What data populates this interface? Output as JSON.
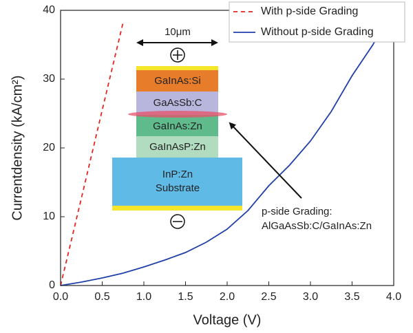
{
  "chart_data": {
    "type": "line",
    "xlabel": "Voltage (V)",
    "ylabel": "Currentdensity (kA/cm²)",
    "xlim": [
      0,
      4
    ],
    "ylim": [
      0,
      40
    ],
    "xticks": [
      {
        "value": 0,
        "label": "0.0"
      },
      {
        "value": 0.5,
        "label": "0.5"
      },
      {
        "value": 1,
        "label": "1.0"
      },
      {
        "value": 1.5,
        "label": "1.5"
      },
      {
        "value": 2,
        "label": "2.0"
      },
      {
        "value": 2.5,
        "label": "2.5"
      },
      {
        "value": 3,
        "label": "3.0"
      },
      {
        "value": 3.5,
        "label": "3.5"
      },
      {
        "value": 4,
        "label": "4.0"
      }
    ],
    "yticks": [
      0,
      10,
      20,
      30,
      40
    ],
    "legend": "upper right",
    "series": [
      {
        "name": "With p-side Grading",
        "color": "#e8231f",
        "dash": true,
        "x": [
          0,
          0.25,
          0.5,
          0.75
        ],
        "values": [
          0,
          12.7,
          25.5,
          38.2
        ]
      },
      {
        "name": "Without p-side Grading",
        "color": "#1f3fa8",
        "dash": false,
        "x": [
          0,
          0.25,
          0.5,
          0.75,
          1.0,
          1.25,
          1.5,
          1.75,
          2.0,
          2.25,
          2.5,
          2.75,
          3.0,
          3.25,
          3.5,
          3.75,
          3.9
        ],
        "values": [
          0,
          0.5,
          1.1,
          1.8,
          2.7,
          3.7,
          4.8,
          6.3,
          8.2,
          10.9,
          14.5,
          17.5,
          21.0,
          25.3,
          30.5,
          35.0,
          38.3
        ]
      }
    ]
  },
  "inset": {
    "width_label": "10μm",
    "layers": [
      "GaInAs:Si",
      "GaAsSb:C",
      "GaInAs:Zn",
      "GaInAsP:Zn"
    ],
    "substrate": [
      "InP:Zn",
      "Substrate"
    ],
    "annotation": [
      "p-side Grading:",
      "AlGaAsSb:C/GaInAs:Zn"
    ]
  }
}
